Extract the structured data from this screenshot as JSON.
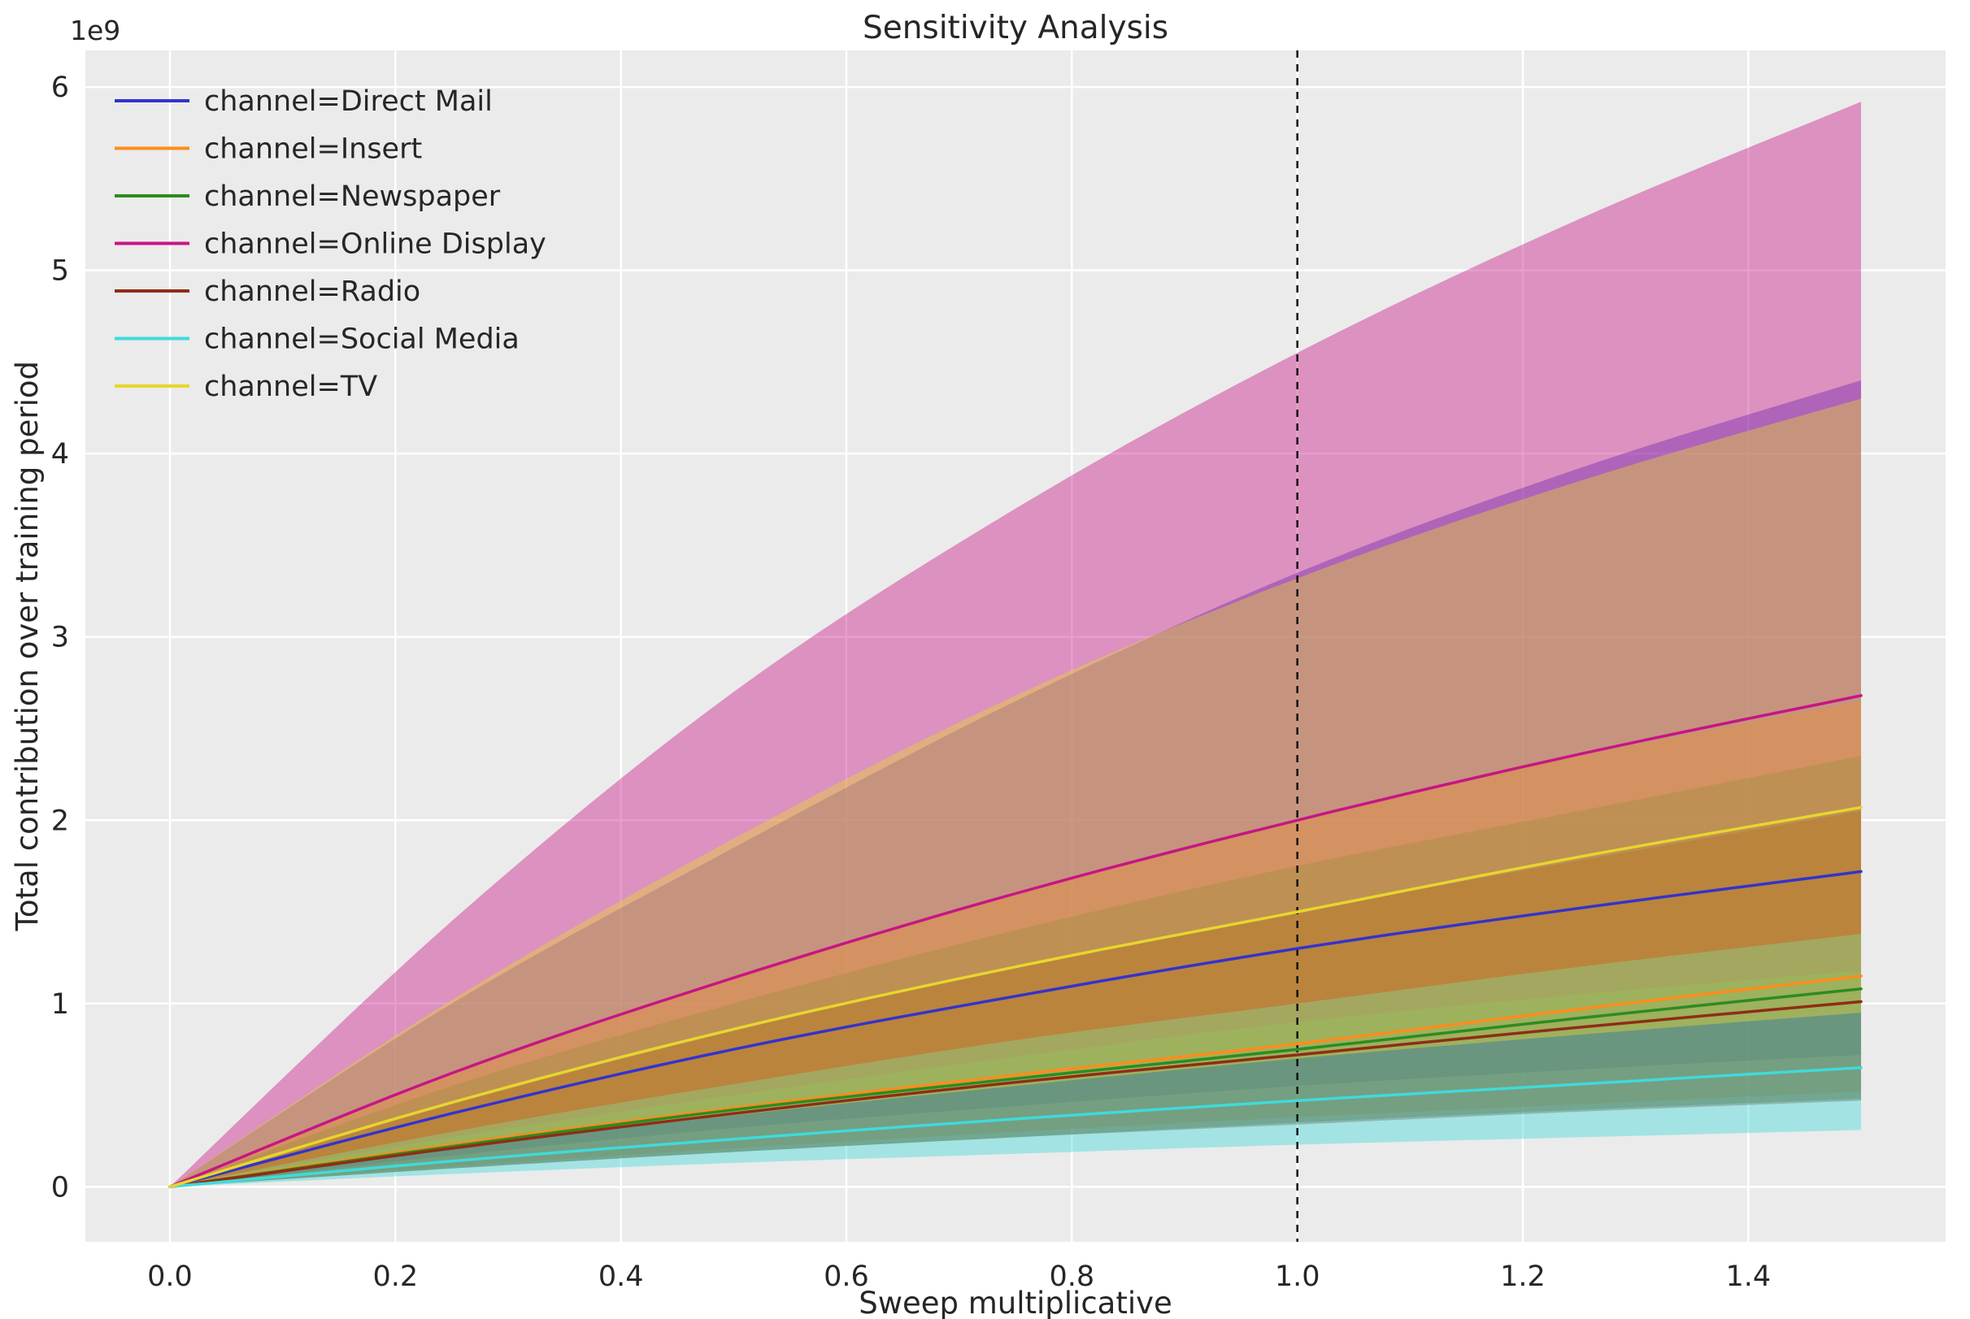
{
  "figure": {
    "title": "Sensitivity Analysis",
    "xlabel": "Sweep multiplicative",
    "ylabel": "Total contribution over training period",
    "offset_label": "1e9"
  },
  "chart_data": {
    "type": "line",
    "title": "Sensitivity Analysis",
    "xlabel": "Sweep multiplicative",
    "ylabel": "Total contribution over training period",
    "y_offset_label": "1e9",
    "y_values_unit": "1e9",
    "xlim": [
      -0.075,
      1.575
    ],
    "ylim": [
      -0.3,
      6.2
    ],
    "x_ticks": [
      0.0,
      0.2,
      0.4,
      0.6,
      0.8,
      1.0,
      1.2,
      1.4
    ],
    "y_ticks": [
      0,
      1,
      2,
      3,
      4,
      5,
      6
    ],
    "vline_x": 1.0,
    "grid": true,
    "legend_position": "upper left",
    "plot_background": "#ebebeb",
    "grid_color": "#ffffff",
    "band_opacity": 0.42,
    "x": [
      0,
      0.25,
      0.5,
      0.75,
      1.0,
      1.25,
      1.5
    ],
    "series": [
      {
        "name": "channel=Direct Mail",
        "color": "#3333cc",
        "values": [
          0,
          0.4,
          0.75,
          1.04,
          1.3,
          1.52,
          1.72
        ],
        "lower": [
          0,
          0.17,
          0.32,
          0.44,
          0.55,
          0.64,
          0.72
        ],
        "upper": [
          0,
          1.0,
          1.85,
          2.65,
          3.35,
          3.92,
          4.4
        ]
      },
      {
        "name": "channel=Insert",
        "color": "#ff8c1a",
        "values": [
          0,
          0.23,
          0.43,
          0.61,
          0.78,
          0.97,
          1.15
        ],
        "lower": [
          0,
          0.11,
          0.21,
          0.3,
          0.38,
          0.45,
          0.52
        ],
        "upper": [
          0,
          0.62,
          1.15,
          1.6,
          2.0,
          2.35,
          2.65
        ]
      },
      {
        "name": "channel=Newspaper",
        "color": "#2e8b22",
        "values": [
          0,
          0.22,
          0.42,
          0.59,
          0.75,
          0.92,
          1.08
        ],
        "lower": [
          0,
          0.1,
          0.19,
          0.27,
          0.35,
          0.42,
          0.48
        ],
        "upper": [
          0,
          0.55,
          1.0,
          1.4,
          1.75,
          2.05,
          2.35
        ]
      },
      {
        "name": "channel=Online Display",
        "color": "#c71585",
        "values": [
          0,
          0.62,
          1.14,
          1.6,
          2.0,
          2.36,
          2.68
        ],
        "lower": [
          0,
          0.27,
          0.5,
          0.71,
          0.9,
          1.05,
          1.18
        ],
        "upper": [
          0,
          1.45,
          2.7,
          3.7,
          4.55,
          5.28,
          5.92
        ]
      },
      {
        "name": "channel=Radio",
        "color": "#8f2d16",
        "values": [
          0,
          0.21,
          0.4,
          0.57,
          0.72,
          0.87,
          1.01
        ],
        "lower": [
          0,
          0.1,
          0.19,
          0.27,
          0.34,
          0.41,
          0.47
        ],
        "upper": [
          0,
          0.45,
          0.85,
          1.2,
          1.5,
          1.78,
          2.05
        ]
      },
      {
        "name": "channel=Social Media",
        "color": "#40dada",
        "values": [
          0,
          0.14,
          0.26,
          0.37,
          0.47,
          0.56,
          0.65
        ],
        "lower": [
          0,
          0.07,
          0.13,
          0.18,
          0.23,
          0.27,
          0.31
        ],
        "upper": [
          0,
          0.3,
          0.56,
          0.8,
          1.0,
          1.2,
          1.38
        ]
      },
      {
        "name": "channel=TV",
        "color": "#e6d62e",
        "values": [
          0,
          0.46,
          0.86,
          1.2,
          1.5,
          1.8,
          2.07
        ],
        "lower": [
          0,
          0.21,
          0.39,
          0.55,
          0.7,
          0.83,
          0.95
        ],
        "upper": [
          0,
          1.02,
          1.9,
          2.68,
          3.32,
          3.85,
          4.3
        ]
      }
    ]
  }
}
